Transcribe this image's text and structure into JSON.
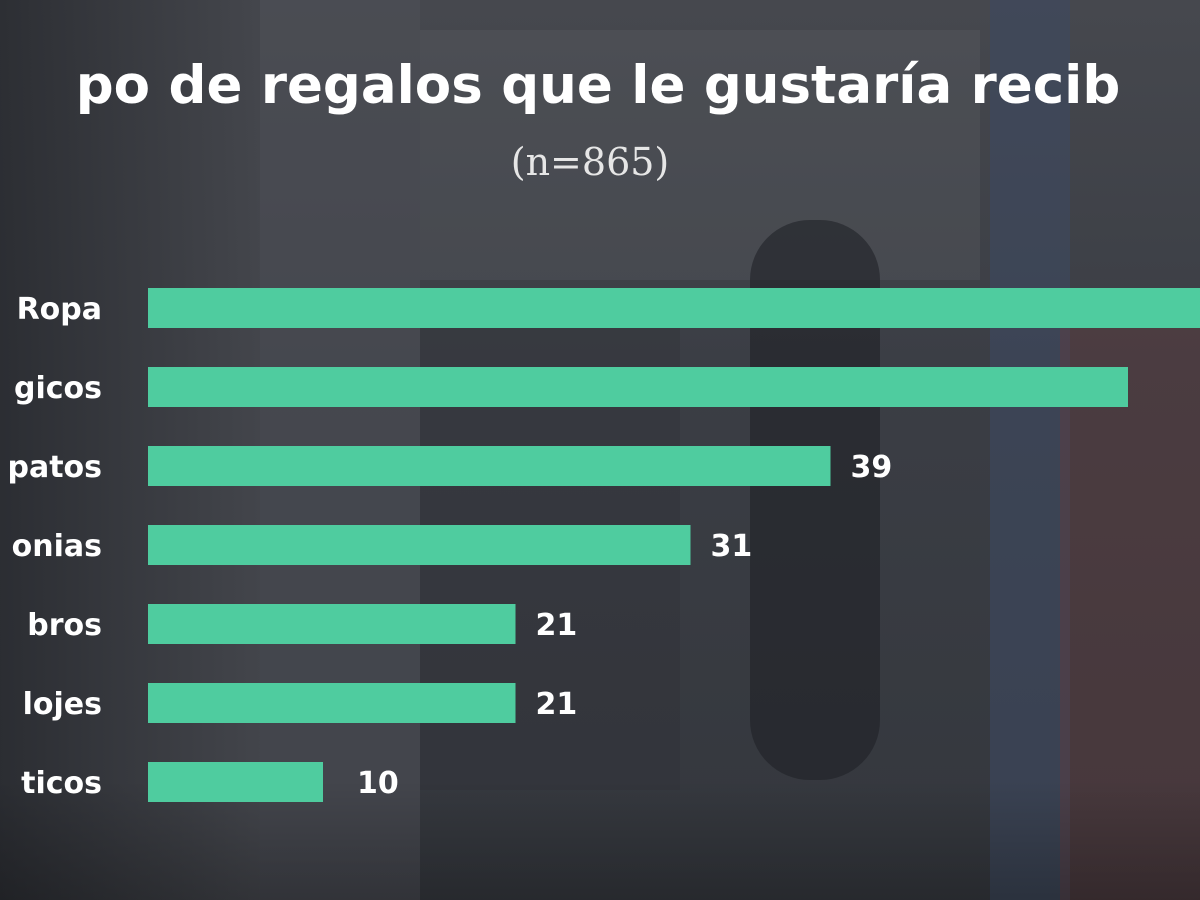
{
  "chart_data": {
    "type": "bar",
    "orientation": "horizontal",
    "title": "po de regalos que le gustaría recib",
    "subtitle": "(n=865)",
    "categories": [
      "Ropa",
      "gicos",
      "patos",
      "onias",
      "bros",
      "lojes",
      "ticos"
    ],
    "values": [
      null,
      null,
      39,
      31,
      21,
      21,
      10
    ],
    "estimated_values": [
      61,
      56,
      39,
      31,
      21,
      21,
      10
    ],
    "value_labels": [
      "",
      "",
      "39",
      "31",
      "21",
      "21",
      "10"
    ],
    "xlim": [
      0,
      62
    ],
    "grid": false,
    "legend": "none",
    "colors": {
      "bar": "#4fcc9f",
      "text": "#ffffff",
      "background": "#3a3d44"
    }
  }
}
